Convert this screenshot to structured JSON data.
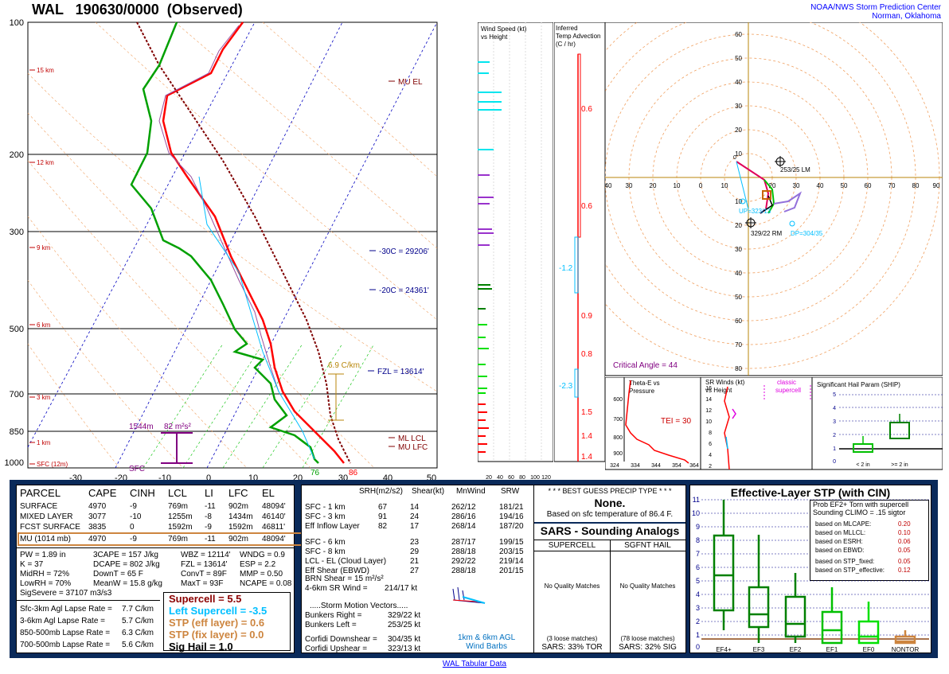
{
  "header": {
    "title": "WAL   190630/0000  (Observed)",
    "org_line1": "NOAA/NWS Storm Prediction Center",
    "org_line2": "Norman, Oklahoma"
  },
  "skewt": {
    "pressure_labels": [
      "100",
      "200",
      "300",
      "500",
      "700",
      "850",
      "1000"
    ],
    "temp_labels": [
      "-30",
      "-20",
      "-10",
      "0",
      "10",
      "20",
      "30",
      "40",
      "50"
    ],
    "height_labels": [
      "15 km",
      "12 km",
      "9 km",
      "6 km",
      "3 km",
      "1 km",
      "SFC (12m)"
    ],
    "annotations": {
      "mu_el": "MU EL",
      "m30c": "-30C = 29206'",
      "m20c": "-20C = 24361'",
      "fzl": "FZL = 13614'",
      "lapse": "6.9 C/km",
      "ml_lcl": "ML LCL",
      "mu_lfc": "MU LFC",
      "srh_depth": "1544m",
      "srh_val": "82 m²s²",
      "sfc": "SFC",
      "td_sfc": "76",
      "t_sfc": "86"
    }
  },
  "wind_panel": {
    "title_line1": "Wind Speed (kt)",
    "title_line2": "vs Height",
    "axis": [
      "20",
      "40",
      "60",
      "80",
      "100",
      "120"
    ]
  },
  "temp_adv": {
    "title_line1": "Inferred",
    "title_line2": "Temp Advection",
    "title_line3": "(C / hr)",
    "values": [
      "0.6",
      "0.6",
      "-1.2",
      "0.9",
      "0.8",
      "-2.3",
      "1.5",
      "1.4",
      "1.4"
    ]
  },
  "hodograph": {
    "x_labels": [
      "40",
      "30",
      "20",
      "10",
      "0",
      "10",
      "20",
      "30",
      "40",
      "50",
      "60",
      "70",
      "80",
      "90"
    ],
    "y_labels": [
      "60",
      "50",
      "40",
      "30",
      "20",
      "10",
      "10",
      "20",
      "30",
      "40",
      "50",
      "60",
      "70",
      "80"
    ],
    "lm": "253/25 LM",
    "rm": "329/22 RM",
    "dp": "DP=304/35",
    "up": "UP=323/13",
    "critical": "Critical Angle = 44"
  },
  "theta_e": {
    "title_line1": "Theta-E vs",
    "title_line2": "Pressure",
    "tei": "TEI = 30",
    "y_labels": [
      "600",
      "700",
      "800",
      "900"
    ],
    "x_labels": [
      "324",
      "334",
      "344",
      "354",
      "364"
    ]
  },
  "srw": {
    "title_line1": "SR Winds (kt)",
    "title_line2": "vs Height",
    "classic": "classic",
    "supercell": "supercell",
    "y_labels": [
      "16",
      "14",
      "12",
      "10",
      "8",
      "6",
      "4",
      "2"
    ]
  },
  "ship": {
    "title": "Significant Hail Param (SHIP)",
    "y_labels": [
      "5",
      "4",
      "3",
      "2",
      "1",
      "0"
    ],
    "x_labels": [
      "< 2 in",
      ">= 2 in"
    ]
  },
  "parcel": {
    "headers": [
      "PARCEL",
      "CAPE",
      "CINH",
      "LCL",
      "LI",
      "LFC",
      "EL"
    ],
    "rows": [
      [
        "SURFACE",
        "4970",
        "-9",
        "769m",
        "-11",
        "902m",
        "48094'"
      ],
      [
        "MIXED LAYER",
        "3077",
        "-10",
        "1255m",
        "-8",
        "1434m",
        "46140'"
      ],
      [
        "FCST SURFACE",
        "3835",
        "0",
        "1592m",
        "-9",
        "1592m",
        "46811'"
      ],
      [
        "MU   (1014 mb)",
        "4970",
        "-9",
        "769m",
        "-11",
        "902m",
        "48094'"
      ]
    ],
    "idx_col1": [
      "PW = 1.89  in",
      "K = 37",
      "MidRH = 72%",
      "LowRH = 70%",
      "SigSevere = 37107 m3/s3"
    ],
    "idx_col2": [
      "3CAPE = 157 J/kg",
      "DCAPE = 802 J/kg",
      "DownT = 65 F",
      "MeanW = 15.8 g/kg"
    ],
    "idx_col3": [
      "WBZ = 12114'",
      "FZL = 13614'",
      "ConvT = 89F",
      "MaxT = 93F"
    ],
    "idx_col4": [
      "WNDG = 0.9",
      "ESP = 2.2",
      "MMP = 0.50",
      "NCAPE = 0.08"
    ],
    "lapse": [
      [
        "Sfc-3km Agl Lapse Rate =",
        "7.7 C/km"
      ],
      [
        "3-6km Agl Lapse Rate =",
        "5.7 C/km"
      ],
      [
        "850-500mb Lapse Rate =",
        "6.3 C/km"
      ],
      [
        "700-500mb Lapse Rate =",
        "5.6 C/km"
      ]
    ],
    "composite": {
      "supercell": "Supercell = 5.5",
      "left_supercell": "Left Supercell = -3.5",
      "stp_eff": "STP (eff layer) = 0.6",
      "stp_fix": "STP (fix layer) = 0.0",
      "sig_hail": "Sig Hail = 1.0"
    }
  },
  "kinematics": {
    "headers": [
      "SRH(m2/s2)",
      "Shear(kt)",
      "MnWind",
      "SRW"
    ],
    "rows": [
      [
        "SFC - 1 km",
        "67",
        "14",
        "262/12",
        "181/21"
      ],
      [
        "SFC - 3 km",
        "91",
        "24",
        "286/16",
        "194/16"
      ],
      [
        "Eff Inflow Layer",
        "82",
        "17",
        "268/14",
        "187/20"
      ],
      [
        "SFC - 6 km",
        "",
        "23",
        "287/17",
        "199/15"
      ],
      [
        "SFC - 8 km",
        "",
        "29",
        "288/18",
        "203/15"
      ],
      [
        "LCL - EL (Cloud Layer)",
        "",
        "21",
        "292/22",
        "219/14"
      ],
      [
        "Eff Shear (EBWD)",
        "",
        "27",
        "288/18",
        "201/15"
      ]
    ],
    "brn_shear": "BRN Shear = 15 m²/s²",
    "sr_wind": "4-6km SR Wind =",
    "sr_wind_val": "214/17 kt",
    "storm_motion": ".....Storm Motion Vectors.....",
    "bunkers_right": "Bunkers Right =",
    "bunkers_right_val": "329/22 kt",
    "bunkers_left": "Bunkers Left =",
    "bunkers_left_val": "253/25 kt",
    "corfidi_down": "Corfidi Downshear =",
    "corfidi_down_val": "304/35 kt",
    "corfidi_up": "Corfidi Upshear =",
    "corfidi_up_val": "323/13 kt",
    "barbs_line1": "1km & 6km AGL",
    "barbs_line2": "Wind Barbs"
  },
  "precip": {
    "title": "* * * BEST GUESS PRECIP TYPE * * *",
    "value": "None.",
    "note": "Based on sfc temperature of 86.4 F."
  },
  "sars": {
    "title": "SARS - Sounding Analogs",
    "col1": "SUPERCELL",
    "col2": "SGFNT HAIL",
    "no_match": "No Quality Matches",
    "loose1": "(3 loose matches)",
    "loose2": "(78 loose matches)",
    "sars1": "SARS:  33% TOR",
    "sars2": "SARS:  32% SIG"
  },
  "stp": {
    "title": "Effective-Layer STP (with CIN)",
    "prob_line1": "Prob EF2+ Torn with supercell",
    "prob_line2": "Sounding CLIMO = .15 sigtor",
    "rows": [
      [
        "based on MLCAPE:",
        "0.20"
      ],
      [
        "based on MLLCL:",
        "0.10"
      ],
      [
        "based on ESRH:",
        "0.06"
      ],
      [
        "based on EBWD:",
        "0.05"
      ],
      [
        "based on STP_fixed:",
        "0.05"
      ],
      [
        "based on STP_effective:",
        "0.12"
      ]
    ],
    "y_labels": [
      "11",
      "10",
      "9",
      "8",
      "7",
      "6",
      "5",
      "4",
      "3",
      "2",
      "1",
      "0"
    ],
    "x_labels": [
      "EF4+",
      "EF3",
      "EF2",
      "EF1",
      "EF0",
      "NONTOR"
    ]
  },
  "footer": "WAL Tabular Data",
  "colors": {
    "temp": "#ff0000",
    "dewpoint": "#00a000",
    "parcel": "#800000",
    "panel_bg": "#0a2a5a",
    "link": "#0000ff"
  }
}
